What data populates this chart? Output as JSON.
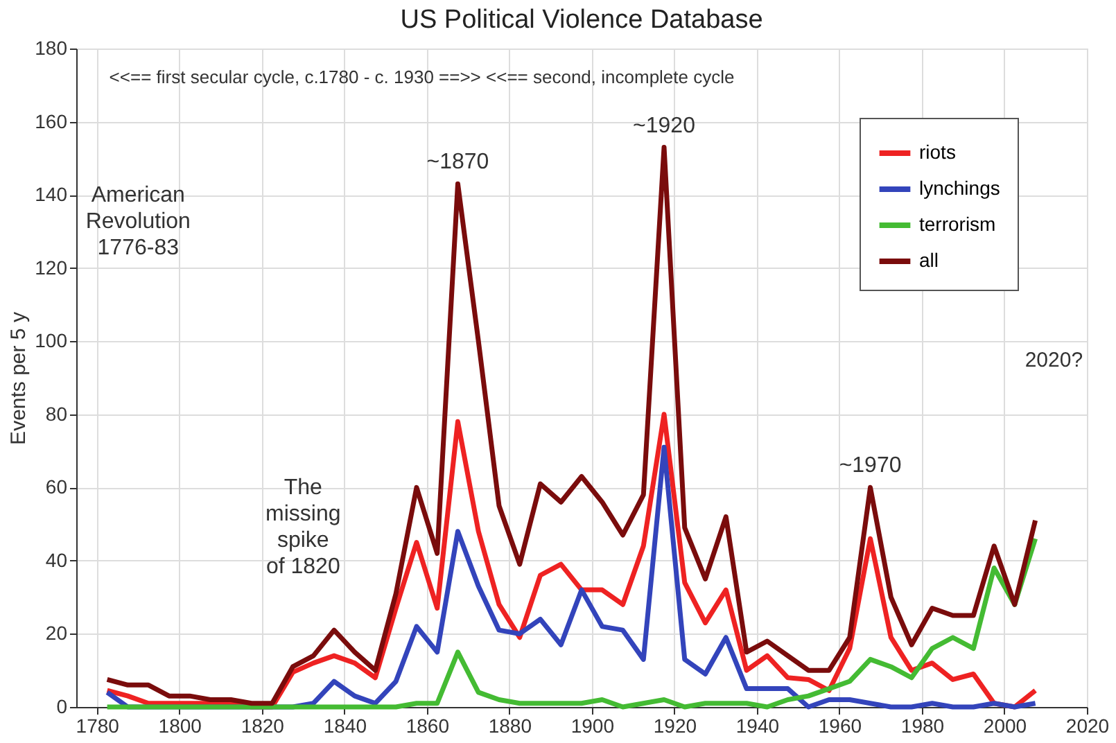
{
  "chart_data": {
    "type": "line",
    "title": "US Political Violence Database",
    "ylabel": "Events per 5 y",
    "x": [
      1782.5,
      1787.5,
      1792.5,
      1797.5,
      1802.5,
      1807.5,
      1812.5,
      1817.5,
      1822.5,
      1827.5,
      1832.5,
      1837.5,
      1842.5,
      1847.5,
      1852.5,
      1857.5,
      1862.5,
      1867.5,
      1872.5,
      1877.5,
      1882.5,
      1887.5,
      1892.5,
      1897.5,
      1902.5,
      1907.5,
      1912.5,
      1917.5,
      1922.5,
      1927.5,
      1932.5,
      1937.5,
      1942.5,
      1947.5,
      1952.5,
      1957.5,
      1962.5,
      1967.5,
      1972.5,
      1977.5,
      1982.5,
      1987.5,
      1992.5,
      1997.5,
      2002.5,
      2007.5
    ],
    "series": [
      {
        "name": "riots",
        "color": "#ee2222",
        "values": [
          4.5,
          3,
          1,
          1,
          1,
          1,
          1,
          0,
          0,
          9.5,
          12,
          14,
          12,
          8,
          27,
          45,
          27,
          78,
          48,
          28,
          19,
          36,
          39,
          32,
          32,
          28,
          44,
          80,
          34,
          23,
          32,
          10,
          14,
          8,
          7.5,
          4.5,
          16,
          46,
          19,
          10,
          12,
          7.5,
          9,
          1,
          0,
          4.5
        ]
      },
      {
        "name": "lynchings",
        "color": "#3344bb",
        "values": [
          4,
          0,
          0,
          0,
          0,
          0,
          0,
          0,
          0,
          0,
          1,
          7,
          3,
          1,
          7,
          22,
          15,
          48,
          33,
          21,
          20,
          24,
          17,
          32,
          22,
          21,
          13,
          71,
          13,
          9,
          19,
          5,
          5,
          5,
          0,
          2,
          2,
          1,
          0,
          0,
          1,
          0,
          0,
          1,
          0,
          1
        ]
      },
      {
        "name": "terrorism",
        "color": "#44bb33",
        "values": [
          0,
          0,
          0,
          0,
          0,
          0,
          0,
          0,
          0,
          0,
          0,
          0,
          0,
          0,
          0,
          1,
          1,
          15,
          4,
          2,
          1,
          1,
          1,
          1,
          2,
          0,
          1,
          2,
          0,
          1,
          1,
          1,
          0,
          2,
          3,
          5,
          7,
          13,
          11,
          8,
          16,
          19,
          16,
          38,
          28,
          46
        ]
      },
      {
        "name": "all",
        "color": "#7a0c0c",
        "values": [
          7.5,
          6,
          6,
          3,
          3,
          2,
          2,
          1,
          1,
          11,
          14,
          21,
          15,
          10,
          31,
          60,
          42,
          143,
          100,
          55,
          39,
          61,
          56,
          63,
          56,
          47,
          58,
          153,
          49,
          35,
          52,
          15,
          18,
          14,
          10,
          10,
          19,
          60,
          30,
          17,
          27,
          25,
          25,
          44,
          28,
          51
        ]
      }
    ],
    "xlim": [
      1775,
      2020
    ],
    "xticks": [
      1780,
      1800,
      1820,
      1840,
      1860,
      1880,
      1900,
      1920,
      1940,
      1960,
      1980,
      2000,
      2020
    ],
    "ylim": [
      0,
      180
    ],
    "yticks": [
      0,
      20,
      40,
      60,
      80,
      100,
      120,
      140,
      160,
      180
    ],
    "grid": true,
    "legend": "top right",
    "marker": "none",
    "line_style": "solid",
    "annotations": [
      "<<==  first secular cycle, c.1780 - c. 1930  ==>> <<== second, incomplete cycle",
      "American\nRevolution\n1776-83",
      {
        "text": "~1870",
        "x": 1867.5,
        "y": 143
      },
      {
        "text": "~1920",
        "x": 1917.5,
        "y": 153
      },
      "The\nmissing\nspike\nof 1820",
      {
        "text": "~1970",
        "x": 1967.5,
        "y": 60
      },
      "2020?"
    ]
  }
}
